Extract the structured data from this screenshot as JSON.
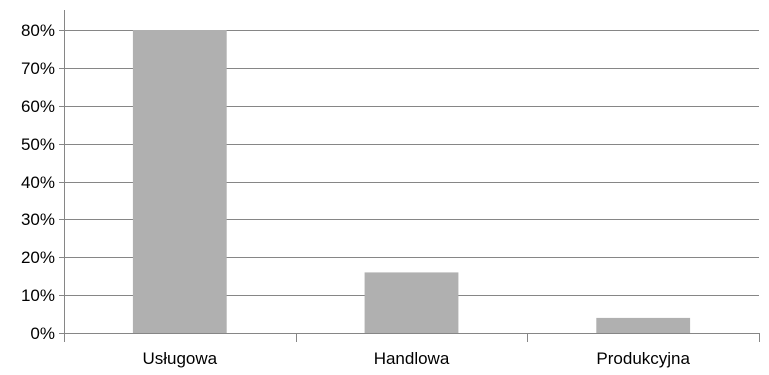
{
  "chart_data": {
    "type": "bar",
    "categories": [
      "Usługowa",
      "Handlowa",
      "Produkcyjna"
    ],
    "values": [
      80,
      16,
      4
    ],
    "ylim": [
      0,
      80
    ],
    "yticks": [
      0,
      10,
      20,
      30,
      40,
      50,
      60,
      70,
      80
    ],
    "ytick_labels": [
      "0%",
      "10%",
      "20%",
      "30%",
      "40%",
      "50%",
      "60%",
      "70%",
      "80%"
    ],
    "grid": true,
    "legend": "none",
    "colors": {
      "bar": "#b0b0b0",
      "grid": "#868686",
      "axis": "#868686"
    }
  }
}
